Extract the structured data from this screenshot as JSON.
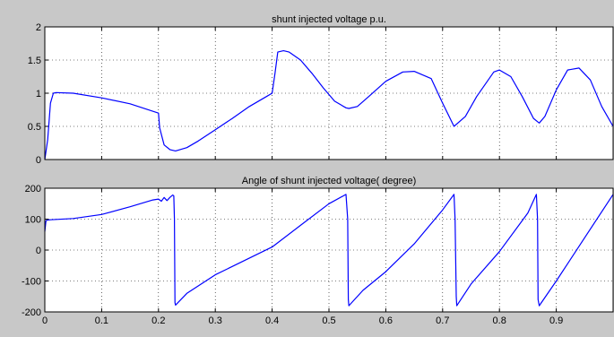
{
  "figure_background": "#c8c8c8",
  "axes_background": "#ffffff",
  "chart_data": [
    {
      "type": "line",
      "title": "shunt injected  voltage p.u.",
      "xlabel": "",
      "ylabel": "",
      "xlim": [
        0,
        1
      ],
      "ylim": [
        0,
        2
      ],
      "xticks": [
        "",
        "",
        "",
        "",
        "",
        "",
        "",
        "",
        "",
        "",
        ""
      ],
      "yticks": [
        "0",
        "0.5",
        "1",
        "1.5",
        "2"
      ],
      "grid": true,
      "series": [
        {
          "color": "#0000ff",
          "x": [
            0,
            0.005,
            0.01,
            0.015,
            0.02,
            0.05,
            0.1,
            0.15,
            0.2,
            0.202,
            0.205,
            0.21,
            0.22,
            0.23,
            0.25,
            0.27,
            0.3,
            0.33,
            0.36,
            0.39,
            0.4,
            0.405,
            0.41,
            0.42,
            0.43,
            0.45,
            0.47,
            0.49,
            0.51,
            0.53,
            0.535,
            0.55,
            0.57,
            0.6,
            0.63,
            0.65,
            0.68,
            0.7,
            0.72,
            0.74,
            0.76,
            0.79,
            0.8,
            0.82,
            0.84,
            0.86,
            0.87,
            0.88,
            0.9,
            0.92,
            0.94,
            0.96,
            0.98,
            1.0
          ],
          "y": [
            0,
            0.3,
            0.85,
            1.0,
            1.01,
            1.0,
            0.93,
            0.84,
            0.7,
            0.48,
            0.38,
            0.22,
            0.15,
            0.13,
            0.18,
            0.28,
            0.45,
            0.62,
            0.8,
            0.95,
            1.0,
            1.3,
            1.62,
            1.64,
            1.62,
            1.5,
            1.3,
            1.08,
            0.88,
            0.78,
            0.77,
            0.8,
            0.95,
            1.18,
            1.32,
            1.33,
            1.22,
            0.85,
            0.5,
            0.65,
            0.95,
            1.32,
            1.35,
            1.25,
            0.95,
            0.62,
            0.55,
            0.65,
            1.05,
            1.35,
            1.38,
            1.2,
            0.8,
            0.5
          ]
        }
      ]
    },
    {
      "type": "line",
      "title": "Angle of shunt injected voltage( degree)",
      "xlabel": "",
      "ylabel": "",
      "xlim": [
        0,
        1
      ],
      "ylim": [
        -200,
        200
      ],
      "xticks": [
        "0",
        "0.1",
        "0.2",
        "0.3",
        "0.4",
        "0.5",
        "0.6",
        "0.7",
        "0.8",
        "0.9",
        ""
      ],
      "yticks": [
        "-200",
        "-100",
        "0",
        "100",
        "200"
      ],
      "grid": true,
      "series": [
        {
          "color": "#0000ff",
          "x": [
            0,
            0.002,
            0.005,
            0.01,
            0.05,
            0.1,
            0.15,
            0.19,
            0.2,
            0.205,
            0.21,
            0.215,
            0.22,
            0.225,
            0.227,
            0.228,
            0.229,
            0.23,
            0.25,
            0.3,
            0.35,
            0.4,
            0.45,
            0.5,
            0.53,
            0.533,
            0.534,
            0.535,
            0.56,
            0.6,
            0.65,
            0.7,
            0.72,
            0.722,
            0.724,
            0.725,
            0.75,
            0.8,
            0.85,
            0.865,
            0.867,
            0.868,
            0.87,
            0.9,
            0.95,
            1.0
          ],
          "y": [
            60,
            95,
            97,
            98,
            102,
            115,
            140,
            162,
            165,
            158,
            170,
            160,
            170,
            178,
            175,
            100,
            -170,
            -178,
            -140,
            -80,
            -35,
            10,
            80,
            150,
            180,
            100,
            -160,
            -180,
            -130,
            -70,
            20,
            130,
            180,
            100,
            -150,
            -180,
            -110,
            -5,
            120,
            180,
            100,
            -160,
            -180,
            -100,
            40,
            180
          ]
        }
      ]
    }
  ]
}
